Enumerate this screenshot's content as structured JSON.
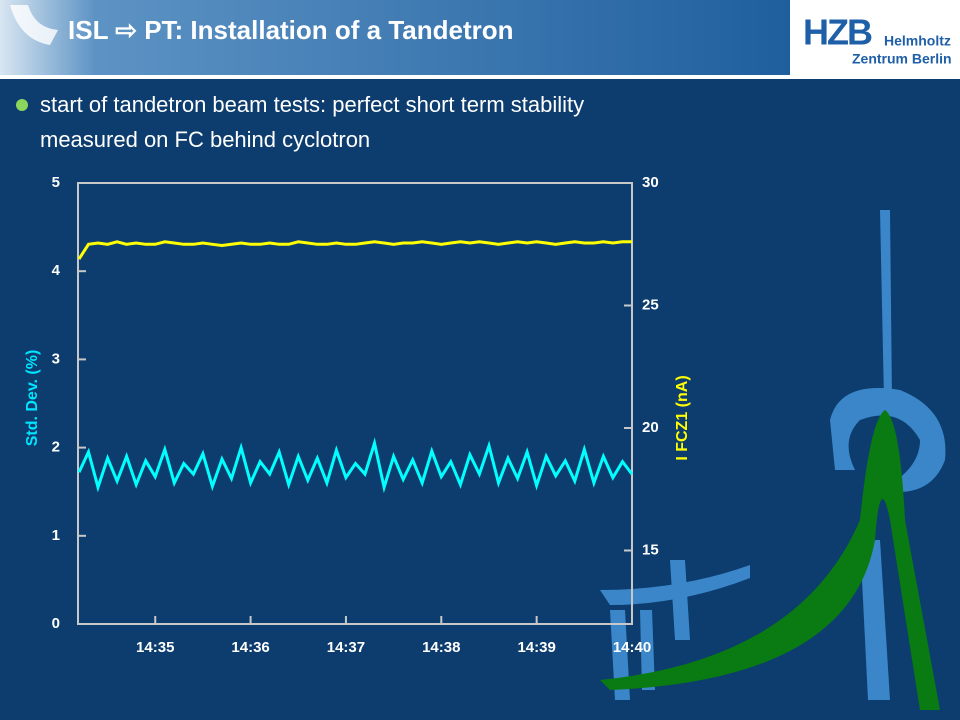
{
  "header": {
    "title": "ISL ⇨ PT: Installation of a Tandetron"
  },
  "logo": {
    "mark": "HZB",
    "line1": "Helmholtz",
    "line2": "Zentrum Berlin"
  },
  "bullets": [
    "start of tandetron beam tests: perfect short term stability",
    "measured on FC behind cyclotron"
  ],
  "chart_data": {
    "type": "line",
    "y_label": "Std. Dev. (%)",
    "y2_label": "I FCZ1 (nA)",
    "x": [
      34.2,
      34.3,
      34.4,
      34.5,
      34.6,
      34.7,
      34.8,
      34.9,
      35.0,
      35.1,
      35.2,
      35.3,
      35.4,
      35.5,
      35.6,
      35.7,
      35.8,
      35.9,
      36.0,
      36.1,
      36.2,
      36.3,
      36.4,
      36.5,
      36.6,
      36.7,
      36.8,
      36.9,
      37.0,
      37.1,
      37.2,
      37.3,
      37.4,
      37.5,
      37.6,
      37.7,
      37.8,
      37.9,
      38.0,
      38.1,
      38.2,
      38.3,
      38.4,
      38.5,
      38.6,
      38.7,
      38.8,
      38.9,
      39.0,
      39.1,
      39.2,
      39.3,
      39.4,
      39.5,
      39.6,
      39.7,
      39.8,
      39.9,
      40.0
    ],
    "xlim": [
      34.19,
      40.0
    ],
    "xticks": [
      {
        "value": 35,
        "label": "14:35"
      },
      {
        "value": 36,
        "label": "14:36"
      },
      {
        "value": 37,
        "label": "14:37"
      },
      {
        "value": 38,
        "label": "14:38"
      },
      {
        "value": 39,
        "label": "14:39"
      },
      {
        "value": 40,
        "label": "14:40"
      }
    ],
    "ylim": [
      0,
      5
    ],
    "yticks": [
      0,
      1,
      2,
      3,
      4,
      5
    ],
    "y2lim": [
      12,
      30
    ],
    "y2ticks": [
      15,
      20,
      25,
      30
    ],
    "series": [
      {
        "name": "Std. Dev.",
        "color": "#00ffff",
        "axis": "y",
        "values": [
          1.72,
          1.95,
          1.55,
          1.88,
          1.62,
          1.9,
          1.58,
          1.85,
          1.67,
          1.98,
          1.6,
          1.82,
          1.7,
          1.93,
          1.56,
          1.87,
          1.65,
          2.0,
          1.6,
          1.84,
          1.7,
          1.95,
          1.58,
          1.9,
          1.63,
          1.88,
          1.6,
          1.97,
          1.66,
          1.82,
          1.7,
          2.05,
          1.55,
          1.9,
          1.64,
          1.86,
          1.6,
          1.96,
          1.67,
          1.84,
          1.58,
          1.92,
          1.7,
          2.02,
          1.6,
          1.88,
          1.65,
          1.95,
          1.57,
          1.9,
          1.68,
          1.85,
          1.62,
          1.98,
          1.6,
          1.9,
          1.66,
          1.84,
          1.7
        ]
      },
      {
        "name": "I FCZ1",
        "color": "#ffff00",
        "axis": "y2",
        "values": [
          26.9,
          27.5,
          27.55,
          27.5,
          27.6,
          27.5,
          27.55,
          27.5,
          27.5,
          27.6,
          27.55,
          27.5,
          27.5,
          27.55,
          27.5,
          27.45,
          27.5,
          27.55,
          27.5,
          27.5,
          27.55,
          27.5,
          27.5,
          27.6,
          27.55,
          27.5,
          27.5,
          27.55,
          27.5,
          27.5,
          27.55,
          27.6,
          27.55,
          27.5,
          27.55,
          27.55,
          27.6,
          27.55,
          27.5,
          27.55,
          27.6,
          27.55,
          27.6,
          27.55,
          27.5,
          27.55,
          27.6,
          27.55,
          27.6,
          27.55,
          27.5,
          27.55,
          27.6,
          27.55,
          27.55,
          27.6,
          27.55,
          27.6,
          27.6
        ]
      }
    ]
  }
}
